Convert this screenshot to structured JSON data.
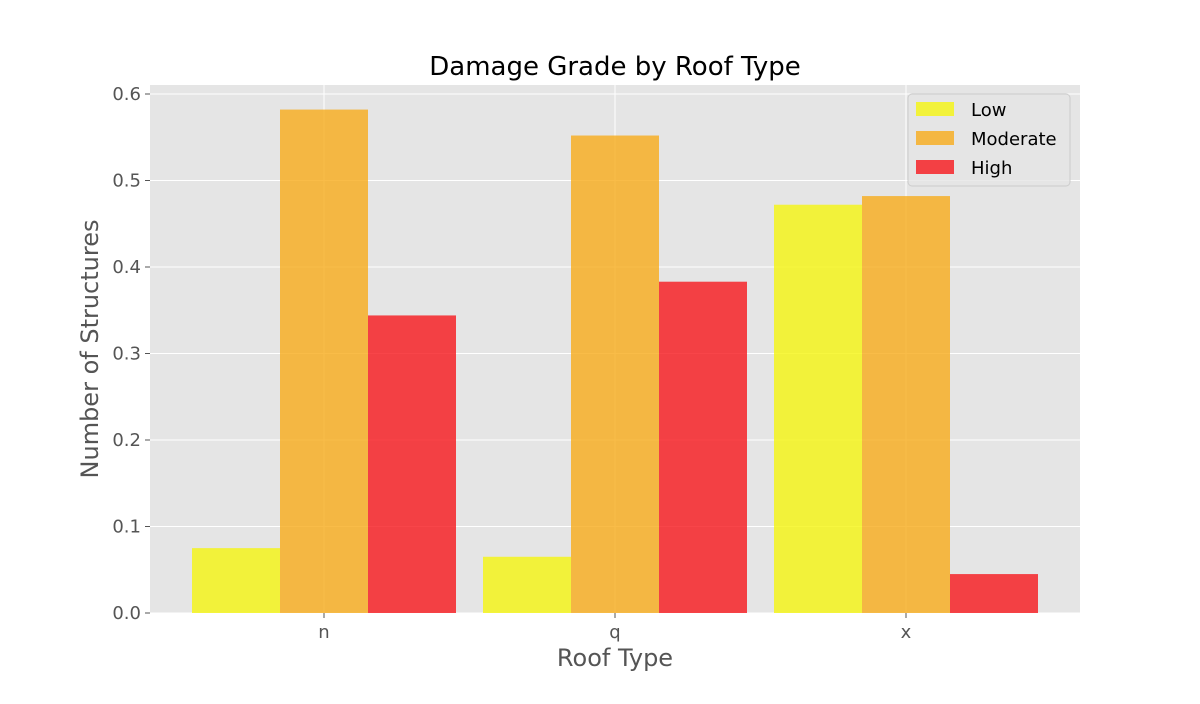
{
  "chart_data": {
    "type": "bar",
    "title": "Damage Grade by Roof Type",
    "xlabel": "Roof Type",
    "ylabel": "Number of Structures",
    "categories": [
      "n",
      "q",
      "x"
    ],
    "series": [
      {
        "name": "Low",
        "values": [
          0.075,
          0.065,
          0.472
        ],
        "color": "#f5f50f"
      },
      {
        "name": "Moderate",
        "values": [
          0.582,
          0.552,
          0.482
        ],
        "color": "#f8ab1a"
      },
      {
        "name": "High",
        "values": [
          0.344,
          0.383,
          0.045
        ],
        "color": "#f6161b"
      }
    ],
    "ylim": [
      0,
      0.6
    ],
    "yticks": [
      "0.0",
      "0.1",
      "0.2",
      "0.3",
      "0.4",
      "0.5",
      "0.6"
    ],
    "grid": true,
    "legend_position": "top-right",
    "style": "ggplot",
    "colors": {
      "plot_background": "#e5e5e5",
      "grid": "#ffffff",
      "text": "#555555",
      "title": "#000000"
    }
  }
}
